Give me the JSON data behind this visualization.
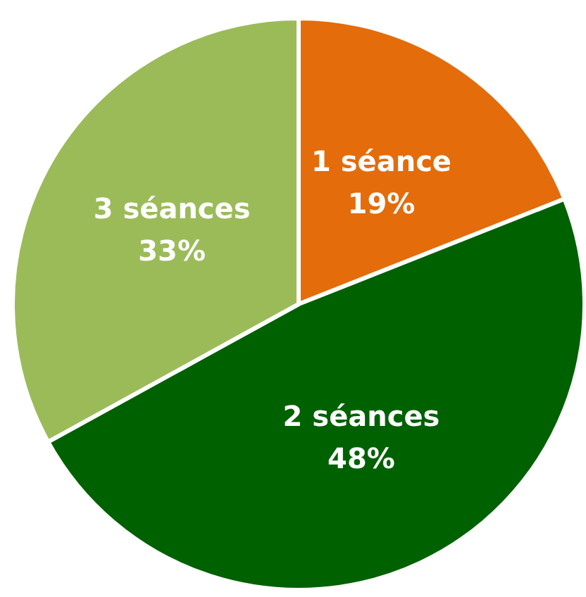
{
  "chart_data": {
    "type": "pie",
    "categories": [
      "1 séance",
      "2 séances",
      "3 séances"
    ],
    "values": [
      19,
      48,
      33
    ],
    "colors": [
      "#e46c0a",
      "#006100",
      "#9bbb59"
    ],
    "value_labels": [
      "19%",
      "48%",
      "33%"
    ],
    "legend": false
  }
}
